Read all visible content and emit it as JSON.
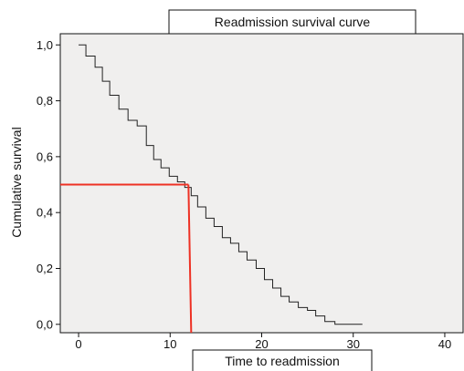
{
  "chart_data": {
    "type": "line",
    "title": "Readmission survival curve",
    "xlabel": "Time to readmission",
    "ylabel": "Cumulative survival",
    "xlim": [
      -2,
      42
    ],
    "ylim": [
      -0.03,
      1.04
    ],
    "xticks": [
      {
        "value": 0,
        "label": "0"
      },
      {
        "value": 10,
        "label": "10"
      },
      {
        "value": 20,
        "label": "20"
      },
      {
        "value": 30,
        "label": "30"
      },
      {
        "value": 40,
        "label": "40"
      }
    ],
    "yticks": [
      {
        "value": 0.0,
        "label": "0,0"
      },
      {
        "value": 0.2,
        "label": "0,2"
      },
      {
        "value": 0.4,
        "label": "0,4"
      },
      {
        "value": 0.6,
        "label": "0,6"
      },
      {
        "value": 0.8,
        "label": "0,8"
      },
      {
        "value": 1.0,
        "label": "1,0"
      }
    ],
    "grid": false,
    "legend": "none",
    "series": [
      {
        "style": "step",
        "color": "#222222",
        "points": [
          {
            "x": 0.0,
            "y": 1.0
          },
          {
            "x": 0.8,
            "y": 0.96
          },
          {
            "x": 1.8,
            "y": 0.92
          },
          {
            "x": 2.6,
            "y": 0.87
          },
          {
            "x": 3.4,
            "y": 0.82
          },
          {
            "x": 4.4,
            "y": 0.77
          },
          {
            "x": 5.4,
            "y": 0.73
          },
          {
            "x": 6.4,
            "y": 0.71
          },
          {
            "x": 7.4,
            "y": 0.64
          },
          {
            "x": 8.2,
            "y": 0.59
          },
          {
            "x": 9.0,
            "y": 0.56
          },
          {
            "x": 9.9,
            "y": 0.53
          },
          {
            "x": 10.8,
            "y": 0.51
          },
          {
            "x": 11.6,
            "y": 0.49
          },
          {
            "x": 12.3,
            "y": 0.46
          },
          {
            "x": 13.0,
            "y": 0.42
          },
          {
            "x": 13.9,
            "y": 0.38
          },
          {
            "x": 14.8,
            "y": 0.35
          },
          {
            "x": 15.7,
            "y": 0.31
          },
          {
            "x": 16.6,
            "y": 0.29
          },
          {
            "x": 17.5,
            "y": 0.26
          },
          {
            "x": 18.4,
            "y": 0.23
          },
          {
            "x": 19.4,
            "y": 0.2
          },
          {
            "x": 20.3,
            "y": 0.16
          },
          {
            "x": 21.2,
            "y": 0.13
          },
          {
            "x": 22.1,
            "y": 0.1
          },
          {
            "x": 23.0,
            "y": 0.08
          },
          {
            "x": 24.0,
            "y": 0.06
          },
          {
            "x": 25.0,
            "y": 0.05
          },
          {
            "x": 25.9,
            "y": 0.03
          },
          {
            "x": 26.9,
            "y": 0.01
          },
          {
            "x": 28.0,
            "y": 0.0
          },
          {
            "x": 31.0,
            "y": 0.0
          }
        ]
      }
    ],
    "median_marker": {
      "color": "#ee3124",
      "survival": 0.5,
      "time": 12.0,
      "time_at_axis": 12.3
    }
  },
  "colors": {
    "plot_background": "#f0efee",
    "axis": "#111111",
    "survival_curve": "#222222",
    "median_line": "#ee3124"
  }
}
